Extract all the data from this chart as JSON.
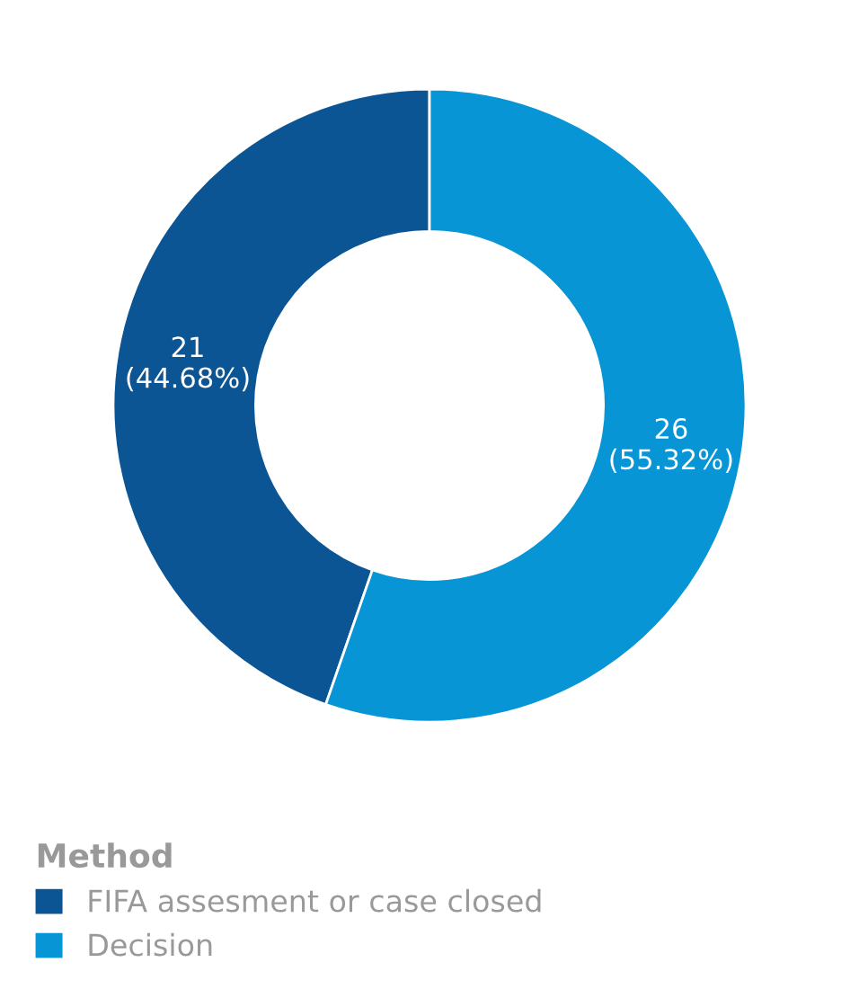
{
  "chart_data": {
    "type": "donut",
    "legend_title": "Method",
    "categories": [
      "FIFA assesment or case closed",
      "Decision"
    ],
    "values": [
      21,
      26
    ],
    "colors": [
      "#0b5595",
      "#0895d6"
    ],
    "value_labels": [
      "21\n(44.68%)",
      "26\n(55.32%)"
    ],
    "legend": "bottom left"
  }
}
